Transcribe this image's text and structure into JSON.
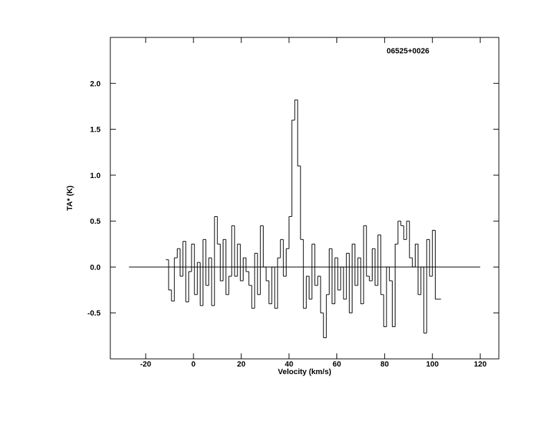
{
  "chart_data": {
    "type": "line",
    "step": true,
    "title": "06525+0026",
    "xlabel": "Velocity (km/s)",
    "ylabel": "TA* (K)",
    "color": "#000000",
    "xlim": [
      -34.8,
      127.8
    ],
    "xticks": [
      -20,
      0,
      20,
      40,
      60,
      80,
      100,
      120
    ],
    "ylim": [
      -1.0,
      2.5
    ],
    "yticks": [
      {
        "value": -0.5,
        "label": "-0.5"
      },
      {
        "value": 0,
        "label": "0.0"
      },
      {
        "value": 0.5,
        "label": "0.5"
      },
      {
        "value": 1,
        "label": "1.0"
      },
      {
        "value": 1.5,
        "label": "1.5"
      },
      {
        "value": 2,
        "label": "2.0"
      }
    ],
    "baseline": {
      "x": [
        -27,
        120
      ],
      "y": 0
    },
    "x": [
      -11,
      -9.8,
      -8.6,
      -7.4,
      -6.2,
      -5,
      -3.8,
      -2.6,
      -1.4,
      -0.2,
      1,
      2.2,
      3.4,
      4.6,
      5.8,
      7,
      8.2,
      9.4,
      10.6,
      11.8,
      13,
      14.2,
      15.4,
      16.6,
      17.8,
      19,
      20.2,
      21.4,
      22.6,
      23.8,
      25,
      26.2,
      27.4,
      28.6,
      29.8,
      31,
      32.2,
      33.4,
      34.6,
      35.8,
      37,
      38.2,
      39.4,
      40.6,
      41.8,
      43,
      44.2,
      45.4,
      46.6,
      47.8,
      49,
      50.2,
      51.4,
      52.6,
      53.8,
      55,
      56.2,
      57.4,
      58.6,
      59.8,
      61,
      62.2,
      63.4,
      64.6,
      65.8,
      67,
      68.2,
      69.4,
      70.6,
      71.8,
      73,
      74.2,
      75.4,
      76.6,
      77.8,
      79,
      80.2,
      81.4,
      82.6,
      83.8,
      85,
      86.2,
      87.4,
      88.6,
      89.8,
      91,
      92.2,
      93.4,
      94.6,
      95.8,
      97,
      98.2,
      99.4,
      100.6,
      101.8,
      103
    ],
    "values": [
      0.08,
      -0.25,
      -0.37,
      0.1,
      0.2,
      -0.1,
      0.28,
      -0.38,
      -0.05,
      0.25,
      -0.3,
      0.05,
      -0.42,
      0.3,
      -0.2,
      0.1,
      -0.42,
      0.55,
      0.25,
      -0.15,
      0.3,
      -0.3,
      -0.1,
      0.45,
      -0.1,
      0.25,
      -0.15,
      0.1,
      -0.05,
      -0.2,
      -0.45,
      0.15,
      -0.3,
      0.45,
      0.0,
      -0.15,
      -0.4,
      0.0,
      -0.45,
      0.1,
      0.3,
      -0.1,
      0.2,
      0.55,
      1.6,
      1.82,
      1.1,
      0.3,
      -0.45,
      -0.1,
      -0.35,
      0.25,
      -0.2,
      -0.1,
      -0.5,
      -0.77,
      -0.3,
      0.2,
      -0.4,
      0.1,
      -0.25,
      0.0,
      -0.35,
      0.15,
      -0.5,
      0.25,
      -0.2,
      0.1,
      -0.4,
      0.45,
      -0.1,
      -0.15,
      0.2,
      -0.2,
      0.35,
      -0.3,
      -0.65,
      0.0,
      -0.15,
      -0.65,
      0.25,
      0.5,
      0.45,
      0.3,
      0.5,
      0.1,
      0.0,
      0.25,
      -0.3,
      0.0,
      -0.72,
      0.3,
      -0.1,
      0.4,
      -0.35,
      -0.35
    ]
  }
}
